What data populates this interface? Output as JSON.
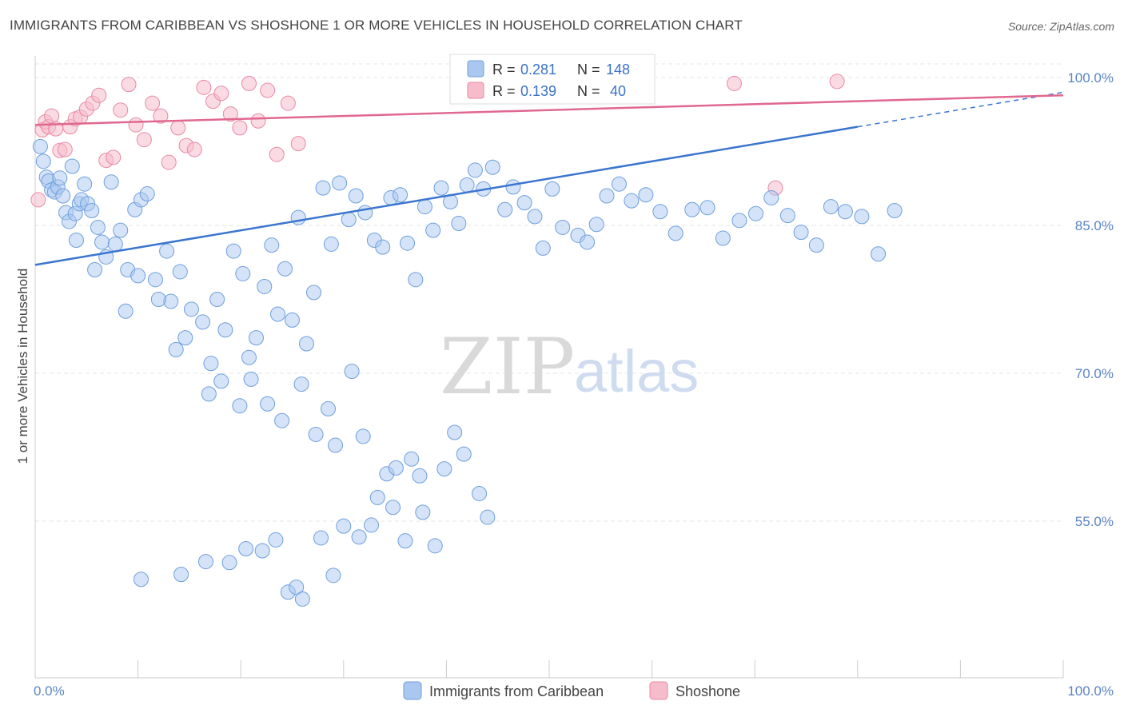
{
  "header": {
    "title": "IMMIGRANTS FROM CARIBBEAN VS SHOSHONE 1 OR MORE VEHICLES IN HOUSEHOLD CORRELATION CHART",
    "source": "Source: ZipAtlas.com"
  },
  "watermark": {
    "zip": "ZIP",
    "atlas": "atlas"
  },
  "colors": {
    "blue_fill": "#a9c7ef",
    "blue_stroke": "#6f9fdc",
    "blue_line": "#3a75cf",
    "pink_fill": "#f6bccc",
    "pink_stroke": "#e88aa6",
    "pink_line": "#e0688f",
    "grid": "#e6e6e6",
    "tick_text": "#5b84c4"
  },
  "legend_box": {
    "rows": [
      {
        "r_label": "R = ",
        "r_value": "0.281",
        "n_label": "N = ",
        "n_value": "148"
      },
      {
        "r_label": "R = ",
        "r_value": "0.139",
        "n_label": "N = ",
        "n_value": " 40"
      }
    ]
  },
  "chart_data": {
    "type": "scatter",
    "title": "IMMIGRANTS FROM CARIBBEAN VS SHOSHONE 1 OR MORE VEHICLES IN HOUSEHOLD CORRELATION CHART",
    "xlabel": "",
    "ylabel": "1 or more Vehicles in Household",
    "xlim": [
      0,
      100
    ],
    "ylim": [
      41.5,
      101
    ],
    "x_tick_labels": [
      "0.0%",
      "100.0%"
    ],
    "y_ticks": [
      55,
      70,
      85,
      100
    ],
    "y_tick_labels": [
      "55.0%",
      "70.0%",
      "85.0%",
      "100.0%"
    ],
    "grid": true,
    "legend_position": "bottom",
    "series": [
      {
        "name": "Immigrants from Caribbean",
        "color": "#a9c7ef",
        "trend": {
          "x": [
            0,
            80
          ],
          "y": [
            81.0,
            95.0
          ],
          "dashed_to": [
            100,
            98.5
          ]
        },
        "points": [
          [
            0.5,
            93.0
          ],
          [
            0.8,
            91.5
          ],
          [
            1.1,
            89.9
          ],
          [
            1.3,
            89.5
          ],
          [
            1.6,
            88.6
          ],
          [
            1.9,
            88.4
          ],
          [
            2.2,
            88.9
          ],
          [
            2.4,
            89.8
          ],
          [
            2.7,
            88.0
          ],
          [
            3.0,
            86.3
          ],
          [
            3.3,
            85.4
          ],
          [
            3.6,
            91.0
          ],
          [
            3.9,
            86.2
          ],
          [
            4.3,
            87.2
          ],
          [
            4.5,
            87.6
          ],
          [
            4.8,
            89.2
          ],
          [
            5.1,
            87.2
          ],
          [
            5.5,
            86.5
          ],
          [
            6.1,
            84.8
          ],
          [
            6.5,
            83.3
          ],
          [
            7.4,
            89.4
          ],
          [
            7.8,
            83.1
          ],
          [
            8.3,
            84.5
          ],
          [
            9.0,
            80.5
          ],
          [
            9.7,
            86.6
          ],
          [
            10.3,
            87.6
          ],
          [
            10.9,
            88.2
          ],
          [
            11.7,
            79.5
          ],
          [
            12.8,
            82.4
          ],
          [
            13.2,
            77.3
          ],
          [
            14.1,
            80.3
          ],
          [
            14.6,
            73.6
          ],
          [
            15.2,
            76.5
          ],
          [
            16.3,
            75.2
          ],
          [
            17.1,
            71.0
          ],
          [
            17.7,
            77.5
          ],
          [
            18.5,
            74.4
          ],
          [
            19.3,
            82.4
          ],
          [
            20.2,
            80.1
          ],
          [
            20.8,
            71.6
          ],
          [
            21.5,
            73.6
          ],
          [
            22.3,
            78.8
          ],
          [
            23.0,
            83.0
          ],
          [
            23.6,
            76.0
          ],
          [
            24.3,
            80.6
          ],
          [
            25.0,
            75.4
          ],
          [
            25.6,
            85.8
          ],
          [
            26.4,
            73.0
          ],
          [
            27.1,
            78.2
          ],
          [
            28.0,
            88.8
          ],
          [
            28.8,
            83.1
          ],
          [
            29.6,
            89.3
          ],
          [
            30.5,
            85.6
          ],
          [
            31.2,
            88.0
          ],
          [
            32.1,
            86.3
          ],
          [
            33.0,
            83.5
          ],
          [
            33.8,
            82.8
          ],
          [
            34.6,
            87.8
          ],
          [
            35.5,
            88.1
          ],
          [
            36.2,
            83.2
          ],
          [
            37.0,
            79.5
          ],
          [
            37.9,
            86.9
          ],
          [
            38.7,
            84.5
          ],
          [
            39.5,
            88.8
          ],
          [
            40.4,
            87.4
          ],
          [
            41.2,
            85.2
          ],
          [
            42.0,
            89.1
          ],
          [
            42.8,
            90.6
          ],
          [
            43.6,
            88.7
          ],
          [
            44.5,
            90.9
          ],
          [
            4.0,
            83.5
          ],
          [
            5.8,
            80.5
          ],
          [
            6.9,
            81.8
          ],
          [
            8.8,
            76.3
          ],
          [
            10.0,
            79.9
          ],
          [
            12.0,
            77.5
          ],
          [
            13.7,
            72.4
          ],
          [
            16.9,
            67.9
          ],
          [
            18.1,
            69.2
          ],
          [
            19.9,
            66.7
          ],
          [
            21.0,
            69.4
          ],
          [
            22.6,
            66.9
          ],
          [
            24.0,
            65.2
          ],
          [
            25.9,
            68.9
          ],
          [
            27.3,
            63.8
          ],
          [
            28.5,
            66.4
          ],
          [
            29.2,
            62.7
          ],
          [
            30.8,
            70.2
          ],
          [
            31.9,
            63.6
          ],
          [
            33.3,
            57.4
          ],
          [
            34.2,
            59.8
          ],
          [
            35.1,
            60.4
          ],
          [
            36.6,
            61.3
          ],
          [
            37.4,
            59.6
          ],
          [
            38.9,
            52.5
          ],
          [
            39.8,
            60.3
          ],
          [
            40.8,
            64.0
          ],
          [
            41.7,
            61.8
          ],
          [
            43.2,
            57.8
          ],
          [
            44.0,
            55.4
          ],
          [
            45.7,
            86.6
          ],
          [
            46.5,
            88.9
          ],
          [
            47.6,
            87.3
          ],
          [
            48.6,
            85.9
          ],
          [
            49.4,
            82.7
          ],
          [
            50.3,
            88.7
          ],
          [
            51.3,
            84.8
          ],
          [
            52.8,
            84.0
          ],
          [
            53.7,
            83.3
          ],
          [
            54.6,
            85.1
          ],
          [
            55.6,
            88.0
          ],
          [
            56.8,
            89.2
          ],
          [
            58.0,
            87.5
          ],
          [
            59.4,
            88.1
          ],
          [
            60.8,
            86.4
          ],
          [
            62.3,
            84.2
          ],
          [
            63.9,
            86.6
          ],
          [
            65.4,
            86.8
          ],
          [
            66.9,
            83.7
          ],
          [
            68.5,
            85.5
          ],
          [
            70.1,
            86.2
          ],
          [
            71.6,
            87.8
          ],
          [
            73.2,
            86.0
          ],
          [
            74.5,
            84.3
          ],
          [
            76.0,
            83.0
          ],
          [
            77.4,
            86.9
          ],
          [
            78.8,
            86.4
          ],
          [
            80.4,
            85.9
          ],
          [
            82.0,
            82.1
          ],
          [
            83.6,
            86.5
          ],
          [
            10.3,
            49.1
          ],
          [
            14.2,
            49.6
          ],
          [
            16.6,
            50.9
          ],
          [
            18.9,
            50.8
          ],
          [
            20.5,
            52.2
          ],
          [
            22.1,
            52.0
          ],
          [
            23.4,
            53.1
          ],
          [
            24.6,
            47.8
          ],
          [
            25.4,
            48.3
          ],
          [
            26.0,
            47.1
          ],
          [
            27.8,
            53.3
          ],
          [
            29.0,
            49.5
          ],
          [
            30.0,
            54.5
          ],
          [
            31.5,
            53.4
          ],
          [
            32.7,
            54.6
          ],
          [
            34.8,
            56.4
          ],
          [
            36.0,
            53.0
          ],
          [
            37.7,
            55.9
          ]
        ]
      },
      {
        "name": "Shoshone",
        "color": "#f6bccc",
        "trend": {
          "x": [
            0,
            100
          ],
          "y": [
            95.2,
            98.2
          ]
        },
        "points": [
          [
            0.3,
            87.6
          ],
          [
            0.7,
            94.7
          ],
          [
            1.0,
            95.5
          ],
          [
            1.3,
            95.0
          ],
          [
            1.6,
            96.1
          ],
          [
            2.0,
            94.8
          ],
          [
            2.4,
            92.6
          ],
          [
            2.9,
            92.7
          ],
          [
            3.4,
            95.0
          ],
          [
            3.9,
            95.8
          ],
          [
            4.4,
            96.0
          ],
          [
            5.0,
            96.8
          ],
          [
            5.6,
            97.4
          ],
          [
            6.2,
            98.2
          ],
          [
            6.9,
            91.6
          ],
          [
            7.6,
            91.9
          ],
          [
            8.3,
            96.7
          ],
          [
            9.1,
            99.3
          ],
          [
            9.8,
            95.2
          ],
          [
            10.6,
            93.7
          ],
          [
            11.4,
            97.4
          ],
          [
            12.2,
            96.1
          ],
          [
            13.0,
            91.4
          ],
          [
            13.9,
            94.9
          ],
          [
            14.7,
            93.1
          ],
          [
            15.5,
            92.7
          ],
          [
            16.4,
            99.0
          ],
          [
            17.3,
            97.6
          ],
          [
            18.1,
            98.4
          ],
          [
            19.0,
            96.3
          ],
          [
            19.9,
            94.9
          ],
          [
            20.8,
            99.4
          ],
          [
            21.7,
            95.6
          ],
          [
            22.6,
            98.7
          ],
          [
            23.5,
            92.2
          ],
          [
            24.6,
            97.4
          ],
          [
            25.6,
            93.3
          ],
          [
            68.0,
            99.4
          ],
          [
            72.0,
            88.8
          ],
          [
            78.0,
            99.6
          ]
        ]
      }
    ]
  },
  "bottom_legend": {
    "items": [
      {
        "label": "Immigrants from Caribbean"
      },
      {
        "label": "Shoshone"
      }
    ]
  }
}
